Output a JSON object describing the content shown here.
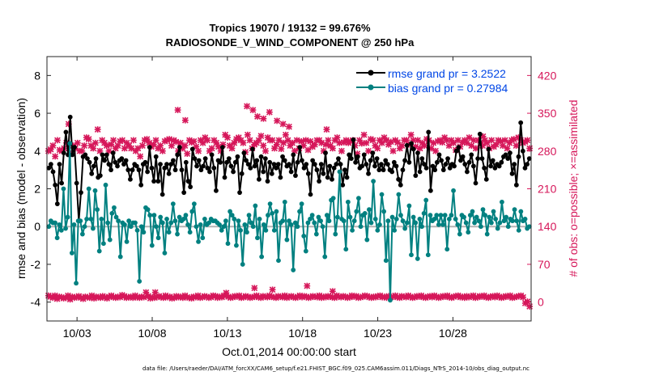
{
  "chart_data": {
    "type": "line",
    "title": [
      "Tropics 19070 / 19132 = 99.676%",
      "RADIOSONDE_V_WIND_COMPONENT @ 250 hPa"
    ],
    "xlabel": "Oct.01,2014 00:00:00 start",
    "ylabel_left": "rmse and bias (model - observation)",
    "ylabel_right": "# of obs: o=possible; ×=assimilated",
    "x_range": [
      1,
      33.2
    ],
    "ylim_left": [
      -5,
      9
    ],
    "ylim_right": [
      -35,
      455
    ],
    "x_ticks": [
      {
        "x": 3,
        "label": "10/03"
      },
      {
        "x": 8,
        "label": "10/08"
      },
      {
        "x": 13,
        "label": "10/13"
      },
      {
        "x": 18,
        "label": "10/18"
      },
      {
        "x": 23,
        "label": "10/23"
      },
      {
        "x": 28,
        "label": "10/28"
      }
    ],
    "y_ticks_left": [
      -4,
      -2,
      0,
      2,
      4,
      6,
      8
    ],
    "y_ticks_right": [
      0,
      70,
      140,
      210,
      280,
      350,
      420
    ],
    "zero_line": 0,
    "colors": {
      "rmse": "#000000",
      "bias": "#008080",
      "obs": "#d6175a",
      "legend_text": "#0046e6",
      "zero": "#b4b4b4"
    },
    "legend": [
      "rmse grand pr = 3.2522",
      "bias grand pr = 0.27984"
    ],
    "series": [
      {
        "name": "rmse",
        "axis": "left",
        "values": [
          3.1,
          3.3,
          2.9,
          2.2,
          1.2,
          3.3,
          2.3,
          3.9,
          5.0,
          3.8,
          5.8,
          3.8,
          4.2,
          2.3,
          0.3,
          1.8,
          3.7,
          3.8,
          3.6,
          3.4,
          2.8,
          3.2,
          3.6,
          2.6,
          2.7,
          3.8,
          3.5,
          3.8,
          3.3,
          3.0,
          3.9,
          3.4,
          3.2,
          3.5,
          3.6,
          3.3,
          3.5,
          3.0,
          2.5,
          3.0,
          3.3,
          3.2,
          3.0,
          2.2,
          3.3,
          3.4,
          2.9,
          4.2,
          3.1,
          2.4,
          3.7,
          2.4,
          3.3,
          1.7,
          3.1,
          3.3,
          2.8,
          3.3,
          3.5,
          3.0,
          3.8,
          4.2,
          3.0,
          1.8,
          3.4,
          2.4,
          2.1,
          4.1,
          3.6,
          3.2,
          3.5,
          3.0,
          3.2,
          3.6,
          3.1,
          2.9,
          3.8,
          3.1,
          1.9,
          3.5,
          3.4,
          4.2,
          2.6,
          3.4,
          3.6,
          3.2,
          2.9,
          3.4,
          3.7,
          1.8,
          2.8,
          3.9,
          3.5,
          3.3,
          3.1,
          4.1,
          3.2,
          3.5,
          2.5,
          3.7,
          2.9,
          3.6,
          2.4,
          3.4,
          2.8,
          3.3,
          3.1,
          3.3,
          2.6,
          3.7,
          3.5,
          3.2,
          3.3,
          2.9,
          3.8,
          2.7,
          3.4,
          4.2,
          3.5,
          3.1,
          3.3,
          2.8,
          1.7,
          3.5,
          3.3,
          3.0,
          2.4,
          3.3,
          2.8,
          3.9,
          2.6,
          3.2,
          2.5,
          3.1,
          3.3,
          3.6,
          3.3,
          2.2,
          3.0,
          2.6,
          3.8,
          3.6,
          4.6,
          3.4,
          3.7,
          3.1,
          3.2,
          3.8,
          3.3,
          2.8,
          3.5,
          3.9,
          3.2,
          3.6,
          3.0,
          3.3,
          3.0,
          3.5,
          3.3,
          3.0,
          2.9,
          3.4,
          3.2,
          2.5,
          2.2,
          3.0,
          3.5,
          4.3,
          3.4,
          4.4,
          4.1,
          2.7,
          3.9,
          2.9,
          3.6,
          3.3,
          3.1,
          5.0,
          1.9,
          3.2,
          3.0,
          3.4,
          3.8,
          3.5,
          3.0,
          3.3,
          3.6,
          3.1,
          3.3,
          3.2,
          4.0,
          4.2,
          3.5,
          3.7,
          3.3,
          2.9,
          3.4,
          3.8,
          3.2,
          2.3,
          3.6,
          4.9,
          3.6,
          3.1,
          2.5,
          4.1,
          3.2,
          3.5,
          3.1,
          3.3,
          3.2,
          3.4,
          3.7,
          3.8,
          3.6,
          3.9,
          2.8,
          3.3,
          2.2,
          3.7,
          5.5,
          4.0,
          3.1,
          3.3,
          3.6
        ]
      },
      {
        "name": "bias",
        "axis": "left",
        "values": [
          0.0,
          0.3,
          0.2,
          0.2,
          -0.6,
          0.1,
          -0.2,
          2.0,
          -0.1,
          0.5,
          4.4,
          -1.4,
          0.1,
          -3.0,
          0.3,
          0.3,
          -0.4,
          0.0,
          0.4,
          2.0,
          0.4,
          -0.1,
          1.9,
          0.9,
          -1.3,
          0.4,
          -0.9,
          2.2,
          0.2,
          -0.7,
          0.7,
          1.0,
          0.5,
          0.3,
          -1.6,
          0.2,
          0.1,
          -0.8,
          0.3,
          0.0,
          0.2,
          0.2,
          -0.2,
          -2.9,
          0.0,
          -0.3,
          1.0,
          0.9,
          0.6,
          -1.0,
          0.6,
          0.0,
          -0.6,
          0.5,
          0.2,
          -1.4,
          0.4,
          -0.3,
          0.2,
          1.2,
          0.3,
          -0.4,
          0.5,
          0.3,
          0.4,
          0.6,
          0.1,
          -0.3,
          0.8,
          1.2,
          0.0,
          -0.8,
          0.1,
          -0.6,
          0.4,
          0.1,
          0.2,
          0.4,
          0.3,
          0.3,
          0.2,
          0.1,
          -0.2,
          0.0,
          0.3,
          -0.9,
          0.8,
          0.6,
          0.4,
          -1.0,
          0.3,
          -0.2,
          -2.0,
          0.1,
          -0.3,
          0.6,
          0.2,
          0.0,
          1.1,
          -0.6,
          0.4,
          -1.6,
          0.1,
          -0.2,
          0.6,
          1.2,
          0.7,
          -0.2,
          0.8,
          -1.8,
          0.2,
          0.3,
          1.3,
          -0.7,
          0.3,
          0.1,
          -2.3,
          0.2,
          0.0,
          0.8,
          1.2,
          -0.5,
          -1.3,
          0.2,
          0.4,
          0.6,
          0.2,
          -0.4,
          0.5,
          0.3,
          0.0,
          -1.6,
          0.6,
          0.3,
          1.4,
          1.5,
          -0.4,
          0.5,
          2.9,
          0.4,
          0.3,
          -1.2,
          1.3,
          0.5,
          -0.2,
          0.3,
          0.8,
          1.5,
          0.0,
          0.6,
          0.7,
          -0.7,
          0.9,
          0.2,
          2.4,
          0.4,
          -0.2,
          0.1,
          1.7,
          0.8,
          -1.8,
          0.3,
          -3.9,
          0.5,
          -0.2,
          0.4,
          1.7,
          0.6,
          0.3,
          -0.1,
          0.2,
          1.1,
          -1.5,
          0.5,
          0.2,
          -1.7,
          0.4,
          0.0,
          0.7,
          1.4,
          -1.5,
          0.6,
          0.3,
          0.4,
          0.6,
          0.1,
          0.6,
          0.1,
          0.6,
          -1.2,
          0.4,
          0.6,
          1.9,
          0.4,
          0.1,
          -0.4,
          0.6,
          0.5,
          0.2,
          -0.3,
          0.6,
          0.8,
          0.2,
          0.5,
          0.3,
          0.0,
          0.9,
          0.6,
          -0.4,
          0.5,
          0.2,
          0.8,
          0.4,
          -0.1,
          0.2,
          1.3,
          0.3,
          0.5,
          0.0,
          0.4,
          0.3,
          0.9,
          0.3,
          -0.2,
          0.8,
          0.3,
          0.4,
          -0.1,
          0.0
        ]
      },
      {
        "name": "obs_possible_top",
        "axis": "right",
        "values": [
          280,
          283,
          290,
          270,
          300,
          282,
          280,
          285,
          295,
          330,
          275,
          290,
          285,
          295,
          280,
          280,
          290,
          305,
          302,
          290,
          285,
          295,
          320,
          280,
          300,
          295,
          290,
          280,
          292,
          300,
          285,
          290,
          298,
          300,
          285,
          295,
          290,
          285,
          300,
          280,
          285,
          270,
          290,
          300,
          302,
          295,
          288,
          292,
          300,
          285,
          290,
          280,
          298,
          300,
          302,
          290,
          300,
          297,
          280,
          295,
          285,
          290,
          275,
          300,
          296,
          298,
          288,
          280,
          300,
          295,
          305,
          300,
          280,
          285,
          300,
          295,
          288,
          280,
          292,
          310,
          305,
          290,
          285,
          295,
          302,
          305,
          300,
          295,
          278,
          310,
          300,
          285,
          292,
          295,
          300,
          308,
          290,
          280,
          305,
          300,
          300,
          285,
          292,
          300,
          284,
          295,
          310,
          300,
          290,
          295,
          280,
          300,
          285,
          298,
          290,
          300,
          282,
          298,
          288,
          292,
          300,
          300,
          295,
          280,
          292,
          300,
          290,
          285,
          300,
          305,
          295,
          280,
          296,
          300,
          295,
          298,
          300,
          290,
          275,
          300,
          294,
          310,
          295,
          280,
          302,
          300,
          290,
          285,
          300,
          295,
          305,
          300,
          292,
          297,
          280,
          300,
          296,
          285,
          290,
          300,
          300,
          292,
          310,
          300,
          288,
          300,
          285,
          295,
          290,
          302,
          300,
          285,
          295,
          280,
          298,
          300,
          296,
          305,
          300,
          290,
          300,
          295,
          282,
          300,
          288,
          296,
          300,
          295,
          305,
          290,
          300,
          285,
          300,
          295,
          290,
          300,
          295,
          285,
          300,
          288,
          292,
          300,
          298,
          290,
          300,
          285,
          295,
          300,
          302,
          290,
          305,
          300,
          295,
          297,
          300,
          285
        ]
      },
      {
        "name": "obs_possible_bottom",
        "axis": "right",
        "values": [
          12,
          10,
          8,
          12,
          6,
          10,
          9,
          7,
          8,
          12,
          5,
          10,
          8,
          9,
          11,
          8,
          6,
          10,
          9,
          8,
          12,
          7,
          10,
          9,
          8,
          11,
          9,
          7,
          10,
          12,
          9,
          8,
          10,
          9,
          13,
          11,
          8,
          9,
          10,
          8,
          12,
          9,
          8,
          10,
          9,
          18,
          11,
          7,
          9,
          8,
          10,
          11,
          9,
          8,
          12,
          9,
          10,
          7,
          8,
          11,
          9,
          10,
          8,
          12,
          9,
          8,
          7,
          10,
          9,
          12,
          8,
          9,
          11,
          10,
          8,
          9,
          12,
          11,
          8,
          10,
          9,
          12,
          17,
          10,
          8,
          9,
          11,
          10,
          12,
          8,
          9,
          11,
          10,
          8,
          9,
          10,
          12,
          9,
          8,
          11,
          10,
          9,
          12,
          10,
          9,
          8,
          11,
          10,
          9,
          12,
          8,
          10,
          11,
          9,
          8,
          10,
          12,
          9,
          11,
          10,
          8,
          9,
          11,
          10,
          9,
          12,
          8,
          10,
          9,
          11,
          10,
          9,
          8,
          12,
          10,
          9,
          11,
          10,
          8,
          9,
          12,
          10,
          11,
          8,
          9,
          10,
          12,
          11,
          9,
          8,
          10,
          9,
          11,
          12,
          9,
          10,
          8,
          11,
          9,
          10,
          12,
          9,
          8,
          11,
          10,
          9,
          12,
          10,
          8,
          9,
          11,
          10,
          12,
          9,
          8,
          10,
          11,
          9,
          12,
          10,
          8,
          9,
          11,
          10,
          12,
          9,
          8,
          10,
          11,
          12,
          9,
          10,
          8,
          11,
          9,
          10,
          12,
          8,
          9,
          11,
          10,
          12,
          9,
          8,
          10,
          11,
          9,
          12,
          10,
          8,
          9,
          11,
          10,
          12,
          8,
          9,
          10,
          11,
          12,
          9,
          -2,
          1,
          -8
        ]
      }
    ],
    "obs_peaks": [
      {
        "x": 9.7,
        "value": 356
      },
      {
        "x": 10.2,
        "value": 337
      },
      {
        "x": 14.3,
        "value": 363
      },
      {
        "x": 14.7,
        "value": 356
      },
      {
        "x": 15.0,
        "value": 344
      },
      {
        "x": 15.4,
        "value": 340
      },
      {
        "x": 15.8,
        "value": 352
      },
      {
        "x": 16.3,
        "value": 336
      },
      {
        "x": 16.7,
        "value": 330
      },
      {
        "x": 17.1,
        "value": 325
      },
      {
        "x": 19.6,
        "value": 320
      },
      {
        "x": 30.0,
        "value": 307
      }
    ],
    "obs_bottom_peaks": [
      {
        "x": 8.2,
        "value": 18
      },
      {
        "x": 14.8,
        "value": 26
      },
      {
        "x": 16.0,
        "value": 23
      },
      {
        "x": 18.3,
        "value": 30
      },
      {
        "x": 20.0,
        "value": 20
      }
    ]
  },
  "footnote": "data file: /Users/raeder/DAI/ATM_forcXX/CAM6_setup/f.e21.FHIST_BGC.f09_025.CAM6assim.011/Diags_NTrS_2014-10/obs_diag_output.nc"
}
